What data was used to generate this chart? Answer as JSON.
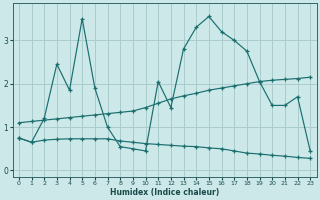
{
  "xlabel": "Humidex (Indice chaleur)",
  "bg_color": "#cce8e8",
  "grid_color": "#aacccc",
  "line_color": "#1a6e6e",
  "line1_x": [
    0,
    1,
    2,
    3,
    4,
    5,
    6,
    7,
    8,
    9,
    10,
    11,
    12,
    13,
    14,
    15,
    16,
    17,
    18,
    19,
    20,
    21,
    22,
    23
  ],
  "line1_y": [
    0.75,
    0.65,
    1.2,
    2.45,
    1.85,
    3.5,
    1.9,
    1.0,
    0.55,
    0.5,
    0.45,
    2.05,
    1.45,
    2.8,
    3.3,
    3.55,
    3.2,
    3.0,
    2.75,
    2.05,
    1.5,
    1.5,
    1.7,
    0.45
  ],
  "line2_x": [
    0,
    1,
    2,
    3,
    4,
    5,
    6,
    7,
    8,
    9,
    10,
    11,
    12,
    13,
    14,
    15,
    16,
    17,
    18,
    19,
    20,
    21,
    22,
    23
  ],
  "line2_y": [
    1.1,
    1.13,
    1.16,
    1.19,
    1.22,
    1.25,
    1.28,
    1.31,
    1.34,
    1.37,
    1.45,
    1.55,
    1.65,
    1.72,
    1.78,
    1.85,
    1.9,
    1.95,
    2.0,
    2.05,
    2.08,
    2.1,
    2.12,
    2.15
  ],
  "line3_x": [
    0,
    1,
    2,
    3,
    4,
    5,
    6,
    7,
    8,
    9,
    10,
    11,
    12,
    13,
    14,
    15,
    16,
    17,
    18,
    19,
    20,
    21,
    22,
    23
  ],
  "line3_y": [
    0.75,
    0.65,
    0.7,
    0.72,
    0.73,
    0.73,
    0.73,
    0.73,
    0.68,
    0.65,
    0.62,
    0.6,
    0.58,
    0.56,
    0.55,
    0.52,
    0.5,
    0.45,
    0.4,
    0.38,
    0.35,
    0.33,
    0.3,
    0.28
  ],
  "ylim": [
    -0.15,
    3.85
  ],
  "xlim": [
    -0.5,
    23.5
  ],
  "yticks": [
    0,
    1,
    2,
    3
  ],
  "xticks": [
    0,
    1,
    2,
    3,
    4,
    5,
    6,
    7,
    8,
    9,
    10,
    11,
    12,
    13,
    14,
    15,
    16,
    17,
    18,
    19,
    20,
    21,
    22,
    23
  ]
}
